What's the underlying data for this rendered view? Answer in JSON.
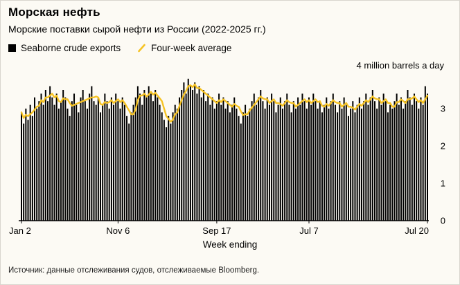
{
  "header": {
    "title": "Морская нефть",
    "subtitle": "Морские поставки сырой нефти из России (2022-2025 гг.)"
  },
  "legend": {
    "bars_label": "Seaborne crude exports",
    "line_label": "Four-week average"
  },
  "source": "Источник: данные отслеживания судов, отслеживаемые Bloomberg.",
  "colors": {
    "bar": "#000000",
    "average_line": "#f6c324",
    "background": "#fcfaf4"
  },
  "chart_data": {
    "type": "bar",
    "title": "Морская нефть",
    "subtitle": "Морские поставки сырой нефти из России (2022-2025 гг.)",
    "xlabel": "Week ending",
    "ylabel": "million barrels a day",
    "y_top_label": "4 million barrels a day",
    "ylim": [
      0,
      4
    ],
    "y_ticks": [
      0,
      1,
      2,
      3
    ],
    "grid": false,
    "legend_position": "top",
    "x_tick_labels": [
      "Jan 2",
      "Nov 6",
      "Sep 17",
      "Jul 7",
      "Jul 20"
    ],
    "x_tick_indices": [
      0,
      44,
      89,
      131,
      185
    ],
    "series": [
      {
        "name": "Seaborne crude exports",
        "type": "bar",
        "color": "#000000",
        "values": [
          2.9,
          2.6,
          3.0,
          2.7,
          3.1,
          2.8,
          3.3,
          3.0,
          3.2,
          3.4,
          3.1,
          3.5,
          3.2,
          3.6,
          3.3,
          3.1,
          3.4,
          3.0,
          3.2,
          3.5,
          3.3,
          3.0,
          2.8,
          3.2,
          3.4,
          3.1,
          2.9,
          3.3,
          3.5,
          3.2,
          3.0,
          3.4,
          3.6,
          3.2,
          3.1,
          3.3,
          2.9,
          3.1,
          3.4,
          3.2,
          3.0,
          3.3,
          3.1,
          3.4,
          3.2,
          3.0,
          3.3,
          3.1,
          2.8,
          2.6,
          2.9,
          3.1,
          3.3,
          3.6,
          3.4,
          3.1,
          3.5,
          3.3,
          3.6,
          3.4,
          3.2,
          3.5,
          3.3,
          3.1,
          2.9,
          2.7,
          2.5,
          2.8,
          2.6,
          2.9,
          3.1,
          3.0,
          3.3,
          3.5,
          3.7,
          3.4,
          3.8,
          3.6,
          3.5,
          3.7,
          3.4,
          3.6,
          3.3,
          3.5,
          3.2,
          3.4,
          3.1,
          3.3,
          3.0,
          3.2,
          3.4,
          3.1,
          3.3,
          3.0,
          3.2,
          2.9,
          3.1,
          3.3,
          3.0,
          2.8,
          2.6,
          2.9,
          3.1,
          2.8,
          3.0,
          3.2,
          3.4,
          3.1,
          3.3,
          3.5,
          3.2,
          3.0,
          3.3,
          3.1,
          3.4,
          3.2,
          2.9,
          3.1,
          3.3,
          3.0,
          3.2,
          3.4,
          3.1,
          2.9,
          3.2,
          3.0,
          3.3,
          3.1,
          3.4,
          3.2,
          3.0,
          3.3,
          3.1,
          3.4,
          3.2,
          3.0,
          3.2,
          2.9,
          3.1,
          3.3,
          3.0,
          3.2,
          3.4,
          3.1,
          2.9,
          3.2,
          3.0,
          3.3,
          3.1,
          2.8,
          3.0,
          3.2,
          2.9,
          3.1,
          3.3,
          3.0,
          3.2,
          3.4,
          3.1,
          3.3,
          3.5,
          3.2,
          3.0,
          3.3,
          3.1,
          3.4,
          3.2,
          2.9,
          3.1,
          3.0,
          3.2,
          3.4,
          3.1,
          3.3,
          3.0,
          3.2,
          3.5,
          3.3,
          3.1,
          3.4,
          3.2,
          3.0,
          3.3,
          3.1,
          3.6,
          3.4
        ]
      },
      {
        "name": "Four-week average",
        "type": "line",
        "color": "#f6c324",
        "derived": "trailing mean of previous 4 weekly values"
      }
    ]
  }
}
